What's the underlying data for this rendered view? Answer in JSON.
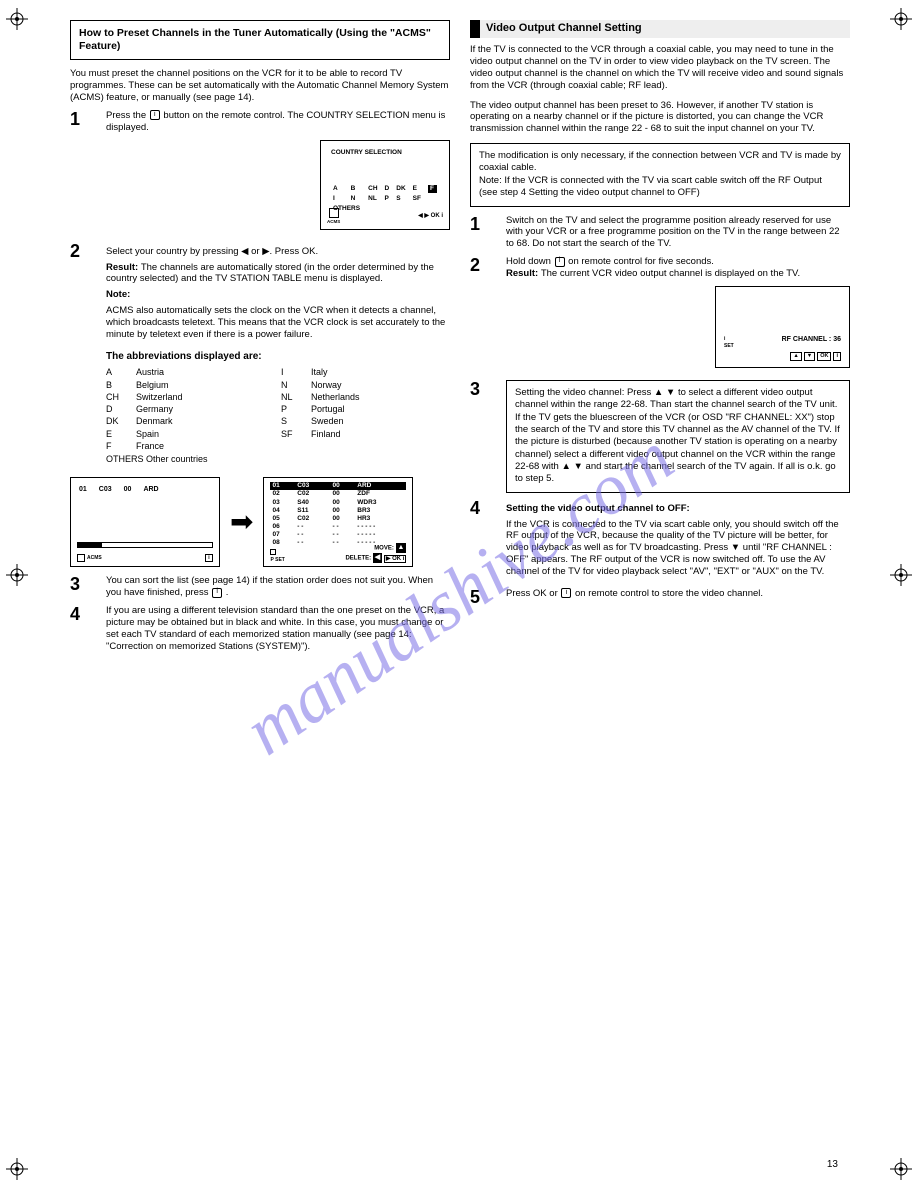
{
  "watermark": "manualshive.com",
  "page_number": "13",
  "left": {
    "boxed_title": "How to Preset Channels in the Tuner Automatically (Using the \"ACMS\" Feature)",
    "intro": "You must preset the channel positions on the VCR for it to be able to record TV programmes. These can be set automatically with the Automatic Channel Memory System (ACMS) feature, or manually (see page 14).",
    "acms_note_lbl": "Note:",
    "acms_note": "ACMS also automatically sets the clock on the VCR when it detects a channel, which broadcasts teletext. This means that the VCR clock is set accurately to the minute by teletext even if there is a power failure.",
    "step1": {
      "num": "1",
      "text_a": "Press the ",
      "text_b": " button on the remote control. The COUNTRY SELECTION menu is displayed.",
      "key": "i"
    },
    "osd_country": {
      "title": "COUNTRY SELECTION",
      "row1": [
        "A",
        "B",
        "CH",
        "D",
        "DK",
        "E",
        "F",
        "I"
      ],
      "row2": [
        "N",
        "NL",
        "P",
        "S",
        "SF",
        "OTHERS"
      ],
      "selected": "F",
      "footer_icon": "ACMS",
      "footer_keys": "◀ ▶ OK i"
    },
    "step2": {
      "num": "2",
      "a": "Select your country by pressing ◀ or ▶. Press OK.",
      "result_lbl": "Result: ",
      "result": "The channels are automatically stored (in the order determined by the country selected) and the TV STATION TABLE menu is displayed.",
      "abbrev_title": "The abbreviations displayed are:",
      "abbrev_rows": [
        [
          "A",
          "Austria",
          "I",
          "Italy"
        ],
        [
          "B",
          "Belgium",
          "N",
          "Norway"
        ],
        [
          "CH",
          "Switzerland",
          "NL",
          "Netherlands"
        ],
        [
          "D",
          "Germany",
          "P",
          "Portugal"
        ],
        [
          "DK",
          "Denmark",
          "S",
          "Sweden"
        ],
        [
          "E",
          "Spain",
          "SF",
          "Finland"
        ],
        [
          "F",
          "France",
          "",
          ""
        ]
      ],
      "others": "OTHERS Other countries"
    },
    "osd_scan": {
      "row": [
        "01",
        "C03",
        "00",
        "ARD"
      ],
      "progress_pct": 18,
      "ft_left": "ACMS",
      "ft_right": "i"
    },
    "osd_list": {
      "rows": [
        [
          "01",
          "C03",
          "00",
          "ARD"
        ],
        [
          "02",
          "C02",
          "00",
          "ZDF"
        ],
        [
          "03",
          "S40",
          "00",
          "WDR3"
        ],
        [
          "04",
          "S11",
          "00",
          "BR3"
        ],
        [
          "05",
          "C02",
          "00",
          "HR3"
        ],
        [
          "06",
          "- -",
          "- -",
          "- - - - -"
        ],
        [
          "07",
          "- -",
          "- -",
          "- - - - -"
        ],
        [
          "08",
          "- -",
          "- -",
          "- - - - -"
        ]
      ],
      "move": "MOVE:",
      "delete": "DELETE:",
      "pset": "P SET"
    },
    "step3": {
      "num": "3",
      "a": "You can sort the list (see page 14) if the station order does not suit you. When you have finished, press ",
      "b": ".",
      "key": "i"
    },
    "step4": {
      "num": "4",
      "a": "If you are using a different television standard than the one preset on the VCR, a picture may be obtained but in black and white. In this case, you must change or set each TV standard of each memorized station manually (see page 14: \"Correction on memorized Stations (SYSTEM)\")."
    }
  },
  "right": {
    "head": "Video Output Channel Setting",
    "intro": "If the TV is connected to the VCR through a coaxial cable, you may need to tune in the video output channel on the TV in order to view video playback on the TV screen. The video output channel is the channel on which the TV will receive video and sound signals from the VCR (through coaxial cable; RF lead).",
    "p2": "The video output channel has been preset to 36. However, if another TV station is operating on a nearby channel or if the picture is distorted, you can change the VCR transmission channel within the range 22 - 68 to suit the input channel on your TV.",
    "boxed_note": "The modification is only necessary, if the connection between VCR and TV is made by coaxial cable.\nNote: If the VCR is connected with the TV via scart cable switch off the RF Output (see step 4 Setting the video output channel to OFF)",
    "step1": {
      "num": "1",
      "a": "Switch on the TV and select the programme position already reserved for use with your VCR or a free programme position on the TV in the range between 22 to 68. Do not start the search of the TV."
    },
    "step2": {
      "num": "2",
      "a": "Hold down ",
      "b": " on remote control for five seconds.",
      "result_lbl": "Result: ",
      "result": "The current VCR video output channel is displayed on the TV.",
      "key": "i"
    },
    "osd_rf": {
      "line": "RF CHANNEL : 36",
      "keys": [
        "▲",
        "▼",
        "OK",
        "i"
      ]
    },
    "step3": {
      "num": "3",
      "box": "Setting the video channel:\nPress ▲ ▼ to select a different video output channel within the range 22-68. Than start the channel search of the TV unit. If the TV gets the bluescreen of the VCR (or OSD \"RF CHANNEL: XX\") stop the search of the TV and store this TV channel as the AV channel of the TV. If the picture is disturbed (because another TV station is operating on a nearby channel) select a different video output channel on the VCR within the range 22-68 with ▲ ▼ and start the channel search of the TV again. If all is o.k. go to step 5."
    },
    "step4": {
      "num": "4",
      "a": "Setting the video output channel to OFF:",
      "b": "If the VCR is connected to the TV via scart cable only, you should switch off the RF output of the VCR, because the quality of the TV picture will be better, for video playback as well as for TV broadcasting. Press ▼ until \"RF CHANNEL : OFF\" appears. The RF output of the VCR is now switched off. To use the AV channel of the TV for video playback select \"AV\", \"EXT\" or \"AUX\" on the TV."
    },
    "step5": {
      "num": "5",
      "a": "Press OK or ",
      "b": " on remote control to store the video channel.",
      "key": "i"
    }
  }
}
